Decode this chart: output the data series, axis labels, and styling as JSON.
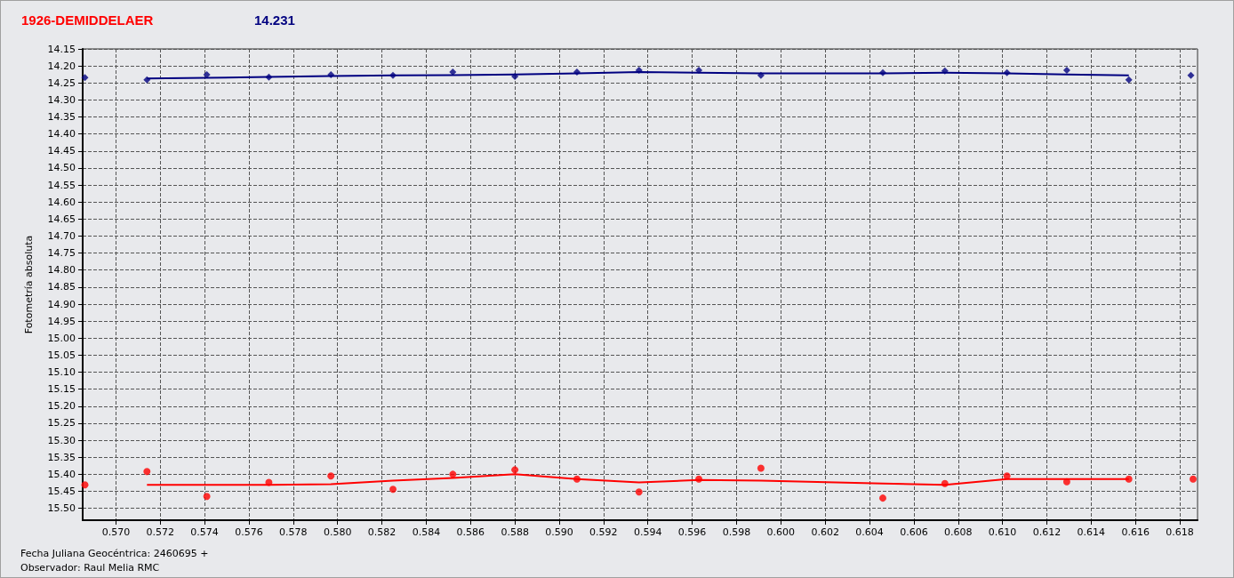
{
  "chart_data": {
    "type": "scatter",
    "title": "1926-DEMIDDELAER",
    "subtitle": "14.231",
    "ylabel": "Fotometría absoluta",
    "annotations": [
      "Fecha Juliana Geocéntrica: 2460695 +",
      "Observador: Raul Melia RMC"
    ],
    "xlim": [
      0.5685,
      0.6188
    ],
    "ylim": [
      15.535,
      14.15
    ],
    "xticks": [
      {
        "value": 0.57,
        "label": "0.570"
      },
      {
        "value": 0.572,
        "label": "0.572"
      },
      {
        "value": 0.574,
        "label": "0.574"
      },
      {
        "value": 0.576,
        "label": "0.576"
      },
      {
        "value": 0.578,
        "label": "0.578"
      },
      {
        "value": 0.58,
        "label": "0.580"
      },
      {
        "value": 0.582,
        "label": "0.582"
      },
      {
        "value": 0.584,
        "label": "0.584"
      },
      {
        "value": 0.586,
        "label": "0.586"
      },
      {
        "value": 0.588,
        "label": "0.588"
      },
      {
        "value": 0.59,
        "label": "0.590"
      },
      {
        "value": 0.592,
        "label": "0.592"
      },
      {
        "value": 0.594,
        "label": "0.594"
      },
      {
        "value": 0.596,
        "label": "0.596"
      },
      {
        "value": 0.598,
        "label": "0.598"
      },
      {
        "value": 0.6,
        "label": "0.600"
      },
      {
        "value": 0.602,
        "label": "0.602"
      },
      {
        "value": 0.604,
        "label": "0.604"
      },
      {
        "value": 0.606,
        "label": "0.606"
      },
      {
        "value": 0.608,
        "label": "0.608"
      },
      {
        "value": 0.61,
        "label": "0.610"
      },
      {
        "value": 0.612,
        "label": "0.612"
      },
      {
        "value": 0.614,
        "label": "0.614"
      },
      {
        "value": 0.616,
        "label": "0.616"
      },
      {
        "value": 0.618,
        "label": "0.618"
      }
    ],
    "yticks": [
      {
        "value": 14.15,
        "label": "14.15"
      },
      {
        "value": 14.2,
        "label": "14.20"
      },
      {
        "value": 14.25,
        "label": "14.25"
      },
      {
        "value": 14.3,
        "label": "14.30"
      },
      {
        "value": 14.35,
        "label": "14.35"
      },
      {
        "value": 14.4,
        "label": "14.40"
      },
      {
        "value": 14.45,
        "label": "14.45"
      },
      {
        "value": 14.5,
        "label": "14.50"
      },
      {
        "value": 14.55,
        "label": "14.55"
      },
      {
        "value": 14.6,
        "label": "14.60"
      },
      {
        "value": 14.65,
        "label": "14.65"
      },
      {
        "value": 14.7,
        "label": "14.70"
      },
      {
        "value": 14.75,
        "label": "14.75"
      },
      {
        "value": 14.8,
        "label": "14.80"
      },
      {
        "value": 14.85,
        "label": "14.85"
      },
      {
        "value": 14.9,
        "label": "14.90"
      },
      {
        "value": 14.95,
        "label": "14.95"
      },
      {
        "value": 15.0,
        "label": "15.00"
      },
      {
        "value": 15.05,
        "label": "15.05"
      },
      {
        "value": 15.1,
        "label": "15.10"
      },
      {
        "value": 15.15,
        "label": "15.15"
      },
      {
        "value": 15.2,
        "label": "15.20"
      },
      {
        "value": 15.25,
        "label": "15.25"
      },
      {
        "value": 15.3,
        "label": "15.30"
      },
      {
        "value": 15.35,
        "label": "15.35"
      },
      {
        "value": 15.4,
        "label": "15.40"
      },
      {
        "value": 15.45,
        "label": "15.45"
      },
      {
        "value": 15.5,
        "label": "15.50"
      }
    ],
    "grid": true,
    "series": [
      {
        "marker": "diamond",
        "color": "#000080",
        "x": [
          0.5686,
          0.5714,
          0.5741,
          0.5769,
          0.5797,
          0.5825,
          0.5852,
          0.588,
          0.5908,
          0.5936,
          0.5963,
          0.5991,
          0.6046,
          0.6074,
          0.6102,
          0.6129,
          0.6157,
          0.6185
        ],
        "values": [
          14.234,
          14.241,
          14.226,
          14.233,
          14.226,
          14.228,
          14.218,
          14.231,
          14.218,
          14.213,
          14.213,
          14.228,
          14.22,
          14.215,
          14.22,
          14.213,
          14.241,
          14.228
        ]
      },
      {
        "type": "line",
        "marker": "none",
        "color": "#000080",
        "x": [
          0.5714,
          0.5741,
          0.5769,
          0.5797,
          0.5825,
          0.5852,
          0.588,
          0.5908,
          0.5936,
          0.5963,
          0.5991,
          0.6046,
          0.6074,
          0.6102,
          0.6129,
          0.6157
        ],
        "values": [
          14.237,
          14.235,
          14.232,
          14.23,
          14.228,
          14.227,
          14.225,
          14.222,
          14.218,
          14.22,
          14.222,
          14.222,
          14.22,
          14.222,
          14.225,
          14.228
        ]
      },
      {
        "marker": "circle",
        "color": "#ff0000",
        "x": [
          0.5686,
          0.5714,
          0.5741,
          0.5769,
          0.5797,
          0.5825,
          0.5852,
          0.588,
          0.5908,
          0.5936,
          0.5963,
          0.5991,
          0.6046,
          0.6074,
          0.6102,
          0.6129,
          0.6157,
          0.6186
        ],
        "values": [
          15.431,
          15.392,
          15.465,
          15.424,
          15.405,
          15.444,
          15.4,
          15.387,
          15.414,
          15.452,
          15.414,
          15.382,
          15.47,
          15.427,
          15.405,
          15.422,
          15.414,
          15.414
        ]
      },
      {
        "type": "line",
        "marker": "none",
        "color": "#ff0000",
        "x": [
          0.5714,
          0.5741,
          0.5769,
          0.5797,
          0.5825,
          0.5852,
          0.588,
          0.5908,
          0.5936,
          0.5963,
          0.5991,
          0.6046,
          0.6074,
          0.6102,
          0.6129,
          0.6157
        ],
        "values": [
          15.431,
          15.431,
          15.431,
          15.429,
          15.419,
          15.411,
          15.4,
          15.414,
          15.424,
          15.417,
          15.419,
          15.427,
          15.431,
          15.414,
          15.414,
          15.414
        ]
      }
    ]
  }
}
